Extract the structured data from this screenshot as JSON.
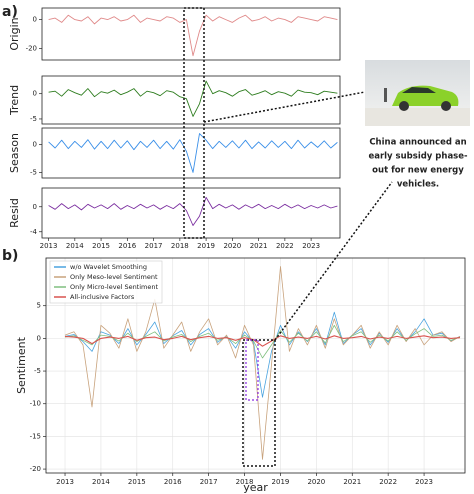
{
  "panel_labels": [
    "a)",
    "b)"
  ],
  "annotation": {
    "lines": [
      "China announced an",
      "early subsidy phase-",
      "out for new energy",
      "vehicles."
    ]
  },
  "chart_data": [
    {
      "type": "line",
      "ylabel": "Origin",
      "color": "#e08a8a",
      "x": [
        2013,
        2013.25,
        2013.5,
        2013.75,
        2014,
        2014.25,
        2014.5,
        2014.75,
        2015,
        2015.25,
        2015.5,
        2015.75,
        2016,
        2016.25,
        2016.5,
        2016.75,
        2017,
        2017.25,
        2017.5,
        2017.75,
        2018,
        2018.25,
        2018.5,
        2018.75,
        2019,
        2019.25,
        2019.5,
        2019.75,
        2020,
        2020.25,
        2020.5,
        2020.75,
        2021,
        2021.25,
        2021.5,
        2021.75,
        2022,
        2022.25,
        2022.5,
        2022.75,
        2023,
        2023.25,
        2023.5,
        2023.75,
        2024
      ],
      "values": [
        0,
        1,
        -2,
        3,
        0,
        -1,
        2,
        -3,
        1,
        0,
        2,
        -1,
        0,
        3,
        -2,
        1,
        0,
        -1,
        2,
        1,
        -2,
        0,
        -25,
        -8,
        3,
        -1,
        2,
        0,
        -2,
        1,
        3,
        -1,
        0,
        2,
        -1,
        1,
        0,
        -2,
        2,
        1,
        0,
        -1,
        2,
        1,
        0
      ],
      "xlim": [
        2012.75,
        2024.1
      ],
      "ylim": [
        -28,
        8
      ],
      "yticks": [
        -20,
        0
      ]
    },
    {
      "type": "line",
      "ylabel": "Trend",
      "color": "#2e7d1f",
      "x": [
        2013,
        2013.25,
        2013.5,
        2013.75,
        2014,
        2014.25,
        2014.5,
        2014.75,
        2015,
        2015.25,
        2015.5,
        2015.75,
        2016,
        2016.25,
        2016.5,
        2016.75,
        2017,
        2017.25,
        2017.5,
        2017.75,
        2018,
        2018.25,
        2018.5,
        2018.75,
        2019,
        2019.25,
        2019.5,
        2019.75,
        2020,
        2020.25,
        2020.5,
        2020.75,
        2021,
        2021.25,
        2021.5,
        2021.75,
        2022,
        2022.25,
        2022.5,
        2022.75,
        2023,
        2023.25,
        2023.5,
        2023.75,
        2024
      ],
      "values": [
        0.3,
        0.5,
        -0.5,
        0.8,
        0.2,
        -0.3,
        1,
        -0.6,
        0.4,
        0.1,
        0.7,
        -0.2,
        0.3,
        1,
        -0.5,
        0.5,
        0.2,
        -0.4,
        0.6,
        0.3,
        -0.6,
        -1,
        -4.5,
        -2,
        2.5,
        0,
        0.6,
        0.2,
        -0.5,
        0.4,
        0.8,
        -0.3,
        0.1,
        0.6,
        -0.2,
        0.4,
        0.1,
        -0.5,
        0.7,
        0.3,
        0.2,
        -0.2,
        0.5,
        0.3,
        0.1
      ],
      "xlim": [
        2012.75,
        2024.1
      ],
      "ylim": [
        -6,
        3.5
      ],
      "yticks": [
        -5,
        0
      ]
    },
    {
      "type": "line",
      "ylabel": "Season",
      "color": "#3a8fe8",
      "x": [
        2013,
        2013.25,
        2013.5,
        2013.75,
        2014,
        2014.25,
        2014.5,
        2014.75,
        2015,
        2015.25,
        2015.5,
        2015.75,
        2016,
        2016.25,
        2016.5,
        2016.75,
        2017,
        2017.25,
        2017.5,
        2017.75,
        2018,
        2018.25,
        2018.5,
        2018.75,
        2019,
        2019.25,
        2019.5,
        2019.75,
        2020,
        2020.25,
        2020.5,
        2020.75,
        2021,
        2021.25,
        2021.5,
        2021.75,
        2022,
        2022.25,
        2022.5,
        2022.75,
        2023,
        2023.25,
        2023.5,
        2023.75,
        2024
      ],
      "values": [
        0.5,
        -0.6,
        0.8,
        -0.7,
        0.6,
        -0.5,
        0.9,
        -0.8,
        0.6,
        -0.7,
        0.8,
        -0.6,
        0.7,
        -0.9,
        0.6,
        -0.5,
        0.8,
        -0.7,
        0.6,
        -0.8,
        0.9,
        -1.2,
        -5,
        2,
        0.8,
        -0.7,
        0.6,
        -0.5,
        0.7,
        -0.6,
        0.8,
        -0.7,
        0.5,
        -0.6,
        0.7,
        -0.5,
        0.6,
        -0.7,
        0.8,
        -0.6,
        0.5,
        -0.5,
        0.7,
        -0.6,
        0.4
      ],
      "xlim": [
        2012.75,
        2024.1
      ],
      "ylim": [
        -6,
        3
      ],
      "yticks": [
        -5,
        0
      ]
    },
    {
      "type": "line",
      "ylabel": "Resid",
      "color": "#7b2fa0",
      "x": [
        2013,
        2013.25,
        2013.5,
        2013.75,
        2014,
        2014.25,
        2014.5,
        2014.75,
        2015,
        2015.25,
        2015.5,
        2015.75,
        2016,
        2016.25,
        2016.5,
        2016.75,
        2017,
        2017.25,
        2017.5,
        2017.75,
        2018,
        2018.25,
        2018.5,
        2018.75,
        2019,
        2019.25,
        2019.5,
        2019.75,
        2020,
        2020.25,
        2020.5,
        2020.75,
        2021,
        2021.25,
        2021.5,
        2021.75,
        2022,
        2022.25,
        2022.5,
        2022.75,
        2023,
        2023.25,
        2023.5,
        2023.75,
        2024
      ],
      "values": [
        0.2,
        -0.4,
        0.5,
        -0.3,
        0.3,
        -0.5,
        0.4,
        -0.2,
        0.3,
        -0.3,
        0.5,
        -0.4,
        0.2,
        -0.3,
        0.4,
        -0.2,
        0.3,
        -0.4,
        0.2,
        -0.3,
        0.5,
        -0.6,
        -3,
        -1.5,
        1.5,
        -0.3,
        0.4,
        -0.2,
        0.3,
        -0.4,
        0.3,
        -0.2,
        0.4,
        -0.3,
        0.2,
        -0.3,
        0.4,
        -0.2,
        0.3,
        -0.3,
        0.2,
        -0.2,
        0.3,
        -0.2,
        0.1
      ],
      "xlim": [
        2012.75,
        2024.1
      ],
      "ylim": [
        -5,
        3
      ],
      "yticks": [
        -4,
        0
      ],
      "xticks": [
        2013,
        2014,
        2015,
        2016,
        2017,
        2018,
        2019,
        2020,
        2021,
        2022,
        2023
      ]
    },
    {
      "type": "line",
      "ylabel": "Sentiment",
      "xlabel": "year",
      "grid": true,
      "legend": "upper left",
      "x": [
        2013,
        2013.25,
        2013.5,
        2013.75,
        2014,
        2014.25,
        2014.5,
        2014.75,
        2015,
        2015.25,
        2015.5,
        2015.75,
        2016,
        2016.25,
        2016.5,
        2016.75,
        2017,
        2017.25,
        2017.5,
        2017.75,
        2018,
        2018.25,
        2018.5,
        2018.75,
        2019,
        2019.25,
        2019.5,
        2019.75,
        2020,
        2020.25,
        2020.5,
        2020.75,
        2021,
        2021.25,
        2021.5,
        2021.75,
        2022,
        2022.25,
        2022.5,
        2022.75,
        2023,
        2023.25,
        2023.5,
        2023.75,
        2024
      ],
      "series": [
        {
          "name": "w/o Wavelet Smoothing",
          "color": "#4aa3df",
          "values": [
            0.3,
            0.6,
            -0.5,
            -2,
            1,
            0.5,
            -0.8,
            1.5,
            -1,
            0.6,
            2.5,
            -0.8,
            0.4,
            1.2,
            -1,
            0.6,
            1.5,
            -0.6,
            0.4,
            -1.5,
            1,
            -0.6,
            -9,
            -2,
            2,
            -1,
            1,
            -0.5,
            1.5,
            -1,
            4,
            -0.8,
            0.5,
            1.5,
            -1,
            0.8,
            -0.6,
            1.5,
            -0.4,
            1,
            3,
            0.5,
            0.8,
            -0.4,
            0.3
          ]
        },
        {
          "name": "Only Meso-level Sentiment",
          "color": "#c8a27c",
          "values": [
            0.5,
            1,
            -1,
            -10.5,
            2,
            0.8,
            -1.5,
            3,
            -2,
            1,
            6,
            -1.5,
            0.5,
            2.5,
            -2,
            1,
            3,
            -1,
            0.5,
            -3,
            2,
            -1,
            -18.5,
            -4,
            11,
            -2,
            1.5,
            -1,
            2,
            -1.5,
            3,
            -1,
            0.5,
            2,
            -1.5,
            1,
            -1,
            2,
            -0.5,
            1.5,
            -1,
            0.5,
            1,
            -0.5,
            0.3
          ]
        },
        {
          "name": "Only Micro-level Sentiment",
          "color": "#7fbf7f",
          "values": [
            0.2,
            0.4,
            -0.3,
            -1,
            0.5,
            0.3,
            -0.4,
            0.8,
            -0.5,
            0.3,
            1,
            -0.4,
            0.2,
            0.6,
            -0.5,
            0.3,
            0.8,
            -0.3,
            0.2,
            -0.8,
            0.5,
            -0.4,
            -3,
            -1,
            1.2,
            -0.6,
            0.8,
            -0.4,
            1,
            -0.7,
            2,
            -0.5,
            0.4,
            1,
            -0.6,
            0.5,
            -0.4,
            1,
            -0.3,
            0.7,
            1.5,
            0.3,
            0.5,
            -0.3,
            0.2
          ]
        },
        {
          "name": "All-inclusive Factors",
          "color": "#d9534f",
          "values": [
            0.3,
            0.2,
            0,
            -0.8,
            0,
            0.2,
            0,
            0.3,
            -0.3,
            0.1,
            0.2,
            -0.2,
            0,
            0.3,
            -0.2,
            0.1,
            0.3,
            0,
            0.1,
            -0.3,
            0.1,
            -0.2,
            -1.2,
            -0.4,
            0.4,
            0,
            0.2,
            0,
            0.3,
            -0.1,
            0.4,
            0,
            0.1,
            0.3,
            -0.1,
            0.2,
            0,
            0.3,
            0,
            0.2,
            0.4,
            0.1,
            0.2,
            0,
            0.1
          ]
        }
      ],
      "xlim": [
        2012.47,
        2024.14
      ],
      "ylim": [
        -20.6,
        12.3
      ],
      "yticks": [
        -20,
        -15,
        -10,
        -5,
        0,
        5
      ],
      "xticks": [
        2013,
        2014,
        2015,
        2016,
        2017,
        2018,
        2019,
        2020,
        2021,
        2022,
        2023
      ]
    }
  ]
}
